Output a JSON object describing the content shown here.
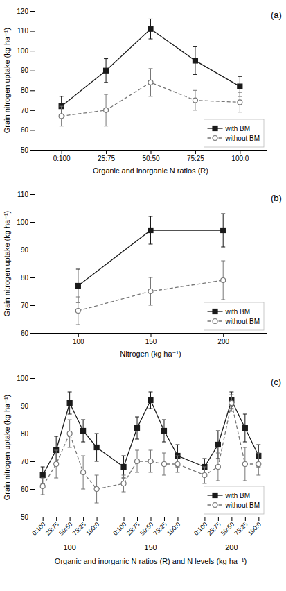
{
  "chart_data": [
    {
      "type": "line",
      "title": "(a)",
      "x_label": "Organic and inorganic N ratios (R)",
      "y_label": "Grain nitrogen uptake (kg ha⁻¹)",
      "categories": [
        "0:100",
        "25:75",
        "50:50",
        "75:25",
        "100:0"
      ],
      "series": [
        {
          "name": "with BM",
          "color": "#1a1a1a",
          "marker": "square",
          "line_style": "solid",
          "values": [
            72,
            90,
            111,
            95,
            82
          ],
          "errors": [
            5,
            6,
            5,
            7,
            5
          ]
        },
        {
          "name": "without BM",
          "color": "#777777",
          "marker": "circle-open",
          "line_style": "dashed",
          "values": [
            67,
            70,
            84,
            75,
            74
          ],
          "errors": [
            5,
            8,
            7,
            5,
            5
          ]
        }
      ],
      "ylim": [
        50,
        120
      ],
      "yticks": [
        50,
        60,
        70,
        80,
        90,
        100,
        110,
        120
      ],
      "legend": "lower right"
    },
    {
      "type": "line",
      "title": "(b)",
      "x_label": "Nitrogen (kg ha⁻¹)",
      "y_label": "Grain nitrogen uptake (kg ha⁻¹)",
      "categories": [
        "100",
        "150",
        "200"
      ],
      "series": [
        {
          "name": "with BM",
          "color": "#1a1a1a",
          "marker": "square",
          "line_style": "solid",
          "values": [
            77,
            97,
            97
          ],
          "errors": [
            6,
            5,
            6
          ]
        },
        {
          "name": "without BM",
          "color": "#777777",
          "marker": "circle-open",
          "line_style": "dashed",
          "values": [
            68,
            75,
            79
          ],
          "errors": [
            5,
            5,
            7
          ]
        }
      ],
      "ylim": [
        60,
        110
      ],
      "yticks": [
        60,
        70,
        80,
        90,
        100,
        110
      ],
      "legend": "lower right"
    },
    {
      "type": "line",
      "title": "(c)",
      "x_label": "Organic and inorganic N ratios (R) and N levels (kg ha⁻¹)",
      "y_label": "Grain nitrogen uptake (kg ha⁻¹)",
      "categories": [
        "0:100",
        "25:75",
        "50:50",
        "75:25",
        "100:0",
        "0:100",
        "25:75",
        "50:50",
        "75:25",
        "100:0",
        "0:100",
        "25:75",
        "50:50",
        "75:25",
        "100:0"
      ],
      "annotations": [
        "100",
        "150",
        "200"
      ],
      "series": [
        {
          "name": "with BM",
          "color": "#1a1a1a",
          "marker": "square",
          "line_style": "solid",
          "values": [
            65,
            74,
            91,
            81,
            75,
            68,
            82,
            92,
            81,
            72,
            68,
            76,
            92,
            82,
            72
          ],
          "errors": [
            3,
            5,
            4,
            4,
            5,
            4,
            4,
            3,
            4,
            4,
            3,
            5,
            3,
            5,
            4
          ]
        },
        {
          "name": "without BM",
          "color": "#777777",
          "marker": "circle-open",
          "line_style": "dashed",
          "values": [
            61,
            69,
            80,
            66,
            60,
            62,
            70,
            70,
            69,
            69,
            65,
            68,
            91,
            69,
            69
          ],
          "errors": [
            3,
            5,
            5,
            6,
            5,
            3,
            4,
            4,
            4,
            3,
            3,
            5,
            3,
            6,
            4
          ]
        }
      ],
      "ylim": [
        50,
        100
      ],
      "yticks": [
        50,
        60,
        70,
        80,
        90,
        100
      ],
      "legend": "lower right"
    }
  ]
}
